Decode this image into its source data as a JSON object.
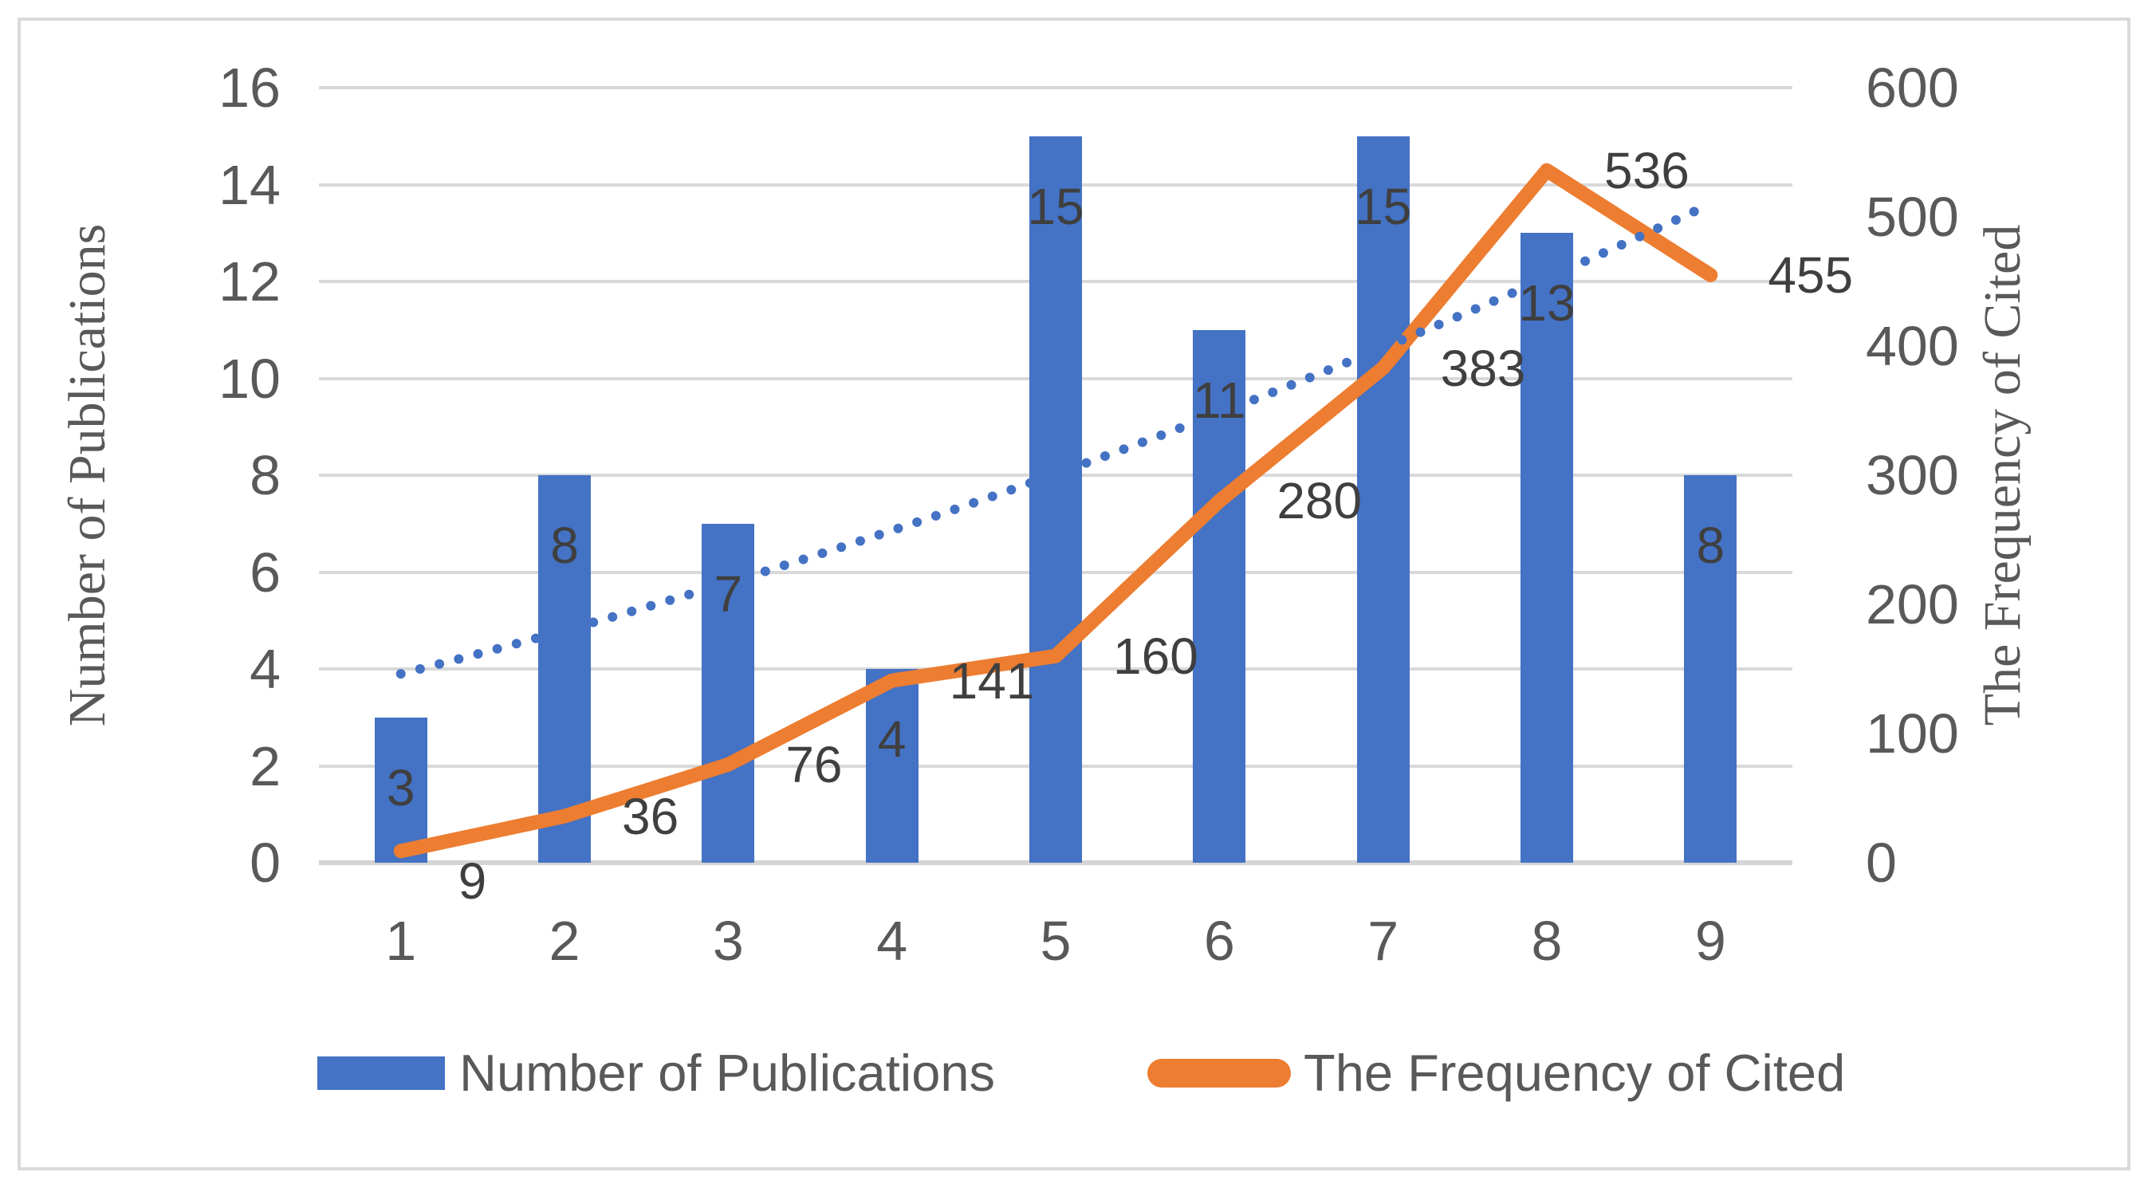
{
  "chart_data": {
    "type": "bar-line-combo",
    "categories": [
      "1",
      "2",
      "3",
      "4",
      "5",
      "6",
      "7",
      "8",
      "9"
    ],
    "series": [
      {
        "name": "Number of Publications",
        "type": "bar",
        "axis": "left",
        "color": "#4472C4",
        "values": [
          3,
          8,
          7,
          4,
          15,
          11,
          15,
          13,
          8
        ],
        "data_labels": [
          "3",
          "8",
          "7",
          "4",
          "15",
          "11",
          "15",
          "13",
          "8"
        ]
      },
      {
        "name": "The Frequency of Cited",
        "type": "line",
        "axis": "right",
        "color": "#ED7D31",
        "values": [
          9,
          36,
          76,
          141,
          160,
          280,
          383,
          536,
          455
        ],
        "data_labels": [
          "9",
          "36",
          "76",
          "141",
          "160",
          "280",
          "383",
          "536",
          "455"
        ]
      },
      {
        "name": "publications-trendline",
        "type": "dotted-trendline",
        "axis": "left",
        "color": "#4472C4",
        "start_value": 3.9,
        "mid_control_value": 7.3,
        "end_value": 13.6
      }
    ],
    "left_axis": {
      "title": "Number of Publications",
      "min": 0,
      "max": 16,
      "step": 2,
      "tick_labels": [
        "0",
        "2",
        "4",
        "6",
        "8",
        "10",
        "12",
        "14",
        "16"
      ]
    },
    "right_axis": {
      "title": "The Frequency of Cited",
      "min": 0,
      "max": 600,
      "step": 100,
      "tick_labels": [
        "0",
        "100",
        "200",
        "300",
        "400",
        "500",
        "600"
      ]
    },
    "x_axis": {
      "tick_labels": [
        "1",
        "2",
        "3",
        "4",
        "5",
        "6",
        "7",
        "8",
        "9"
      ]
    },
    "legend": {
      "items": [
        {
          "label": "Number of Publications",
          "swatch": "bar",
          "color": "#4472C4"
        },
        {
          "label": "The Frequency of Cited",
          "swatch": "line",
          "color": "#ED7D31"
        }
      ]
    },
    "style": {
      "gridline_color": "#D9D9D9",
      "axisline_color": "#D5D5D5",
      "frame_border_color": "#D9D9D9",
      "tick_text_color": "#595959",
      "data_label_color": "#3F3F3F",
      "axis_title_color": "#595959",
      "legend_text_color": "#595959",
      "background": "#FFFFFF",
      "grid_horizontal": true,
      "legend_position": "bottom"
    }
  }
}
